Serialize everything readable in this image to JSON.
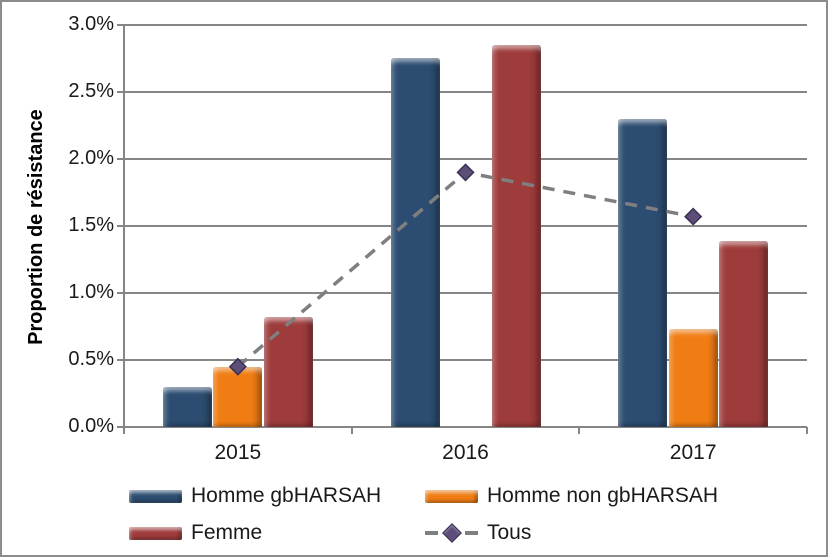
{
  "figure": {
    "background": "#ffffff",
    "border_color": "#8c8c8c",
    "gridline_color": "#868686"
  },
  "y_axis": {
    "title": "Proportion de résistance",
    "tick_labels": [
      "3.0%",
      "2.5%",
      "2.0%",
      "1.5%",
      "1.0%",
      "0.5%",
      "0.0%"
    ]
  },
  "x_axis": {
    "tick_labels": [
      "2015",
      "2016",
      "2017"
    ]
  },
  "chart_data": {
    "type": "bar",
    "subtype": "grouped bars with dashed line overlay",
    "categories": [
      "2015",
      "2016",
      "2017"
    ],
    "series": [
      {
        "name": "Homme gbHARSAH",
        "type": "bar",
        "color": "#2c4d71",
        "values": [
          0.3,
          2.75,
          2.3
        ]
      },
      {
        "name": "Homme non gbHARSAH",
        "type": "bar",
        "color": "#f07d13",
        "values": [
          0.45,
          null,
          0.73
        ]
      },
      {
        "name": "Femme",
        "type": "bar",
        "color": "#9e3b3b",
        "values": [
          0.82,
          2.85,
          1.39
        ]
      },
      {
        "name": "Tous",
        "type": "line",
        "line_color": "#7f7f7f",
        "line_style": "dashed",
        "marker": "diamond",
        "marker_color": "#5c4e79",
        "marker_edge_color": "#3a3054",
        "values": [
          0.45,
          1.9,
          1.57
        ]
      }
    ],
    "title": "",
    "xlabel": "",
    "ylabel": "Proportion de résistance",
    "ylim": [
      0,
      3.0
    ],
    "ytick_step": 0.5,
    "value_unit": "%",
    "grid": true,
    "legend_position": "bottom"
  }
}
